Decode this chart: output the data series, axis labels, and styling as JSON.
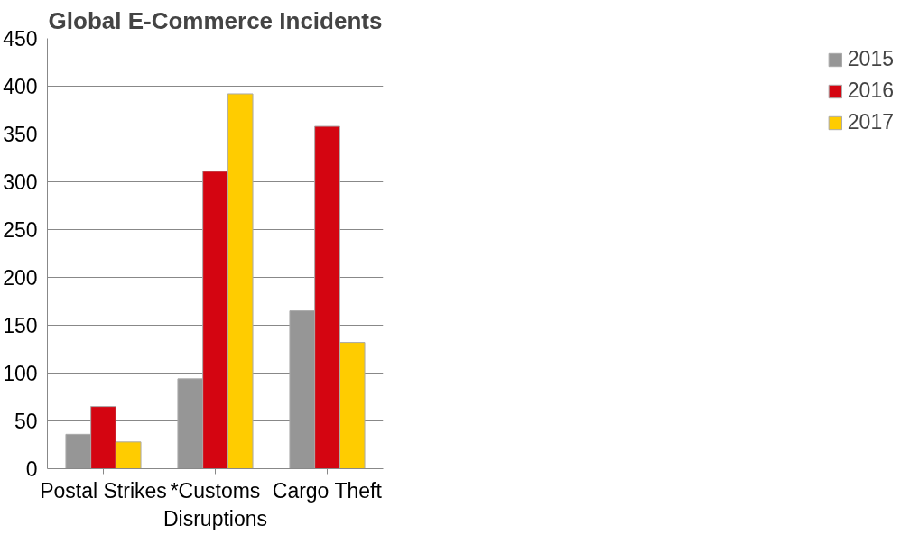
{
  "chart_data": {
    "type": "bar",
    "title": "Global E-Commerce Incidents",
    "categories": [
      "Postal Strikes",
      "*Customs Disruptions",
      "Cargo Theft"
    ],
    "series": [
      {
        "name": "2015",
        "color": "#969696",
        "values": [
          36,
          94,
          165
        ]
      },
      {
        "name": "2016",
        "color": "#d40511",
        "values": [
          65,
          311,
          358
        ]
      },
      {
        "name": "2017",
        "color": "#ffcc00",
        "values": [
          28,
          392,
          132
        ]
      }
    ],
    "ylim": [
      0,
      450
    ],
    "yticks": [
      0,
      50,
      100,
      150,
      200,
      250,
      300,
      350,
      400,
      450
    ],
    "grid": "y",
    "legend": "right"
  }
}
